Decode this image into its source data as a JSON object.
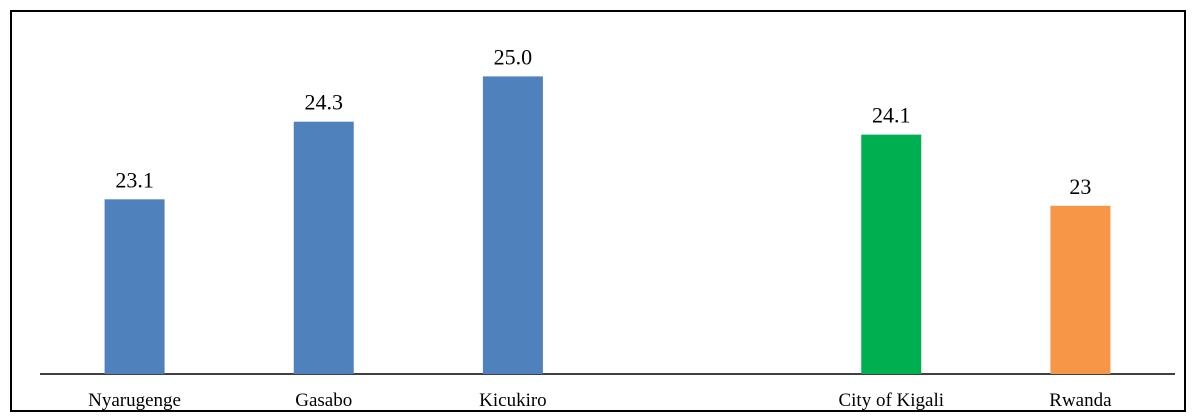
{
  "chart_data": {
    "type": "bar",
    "categories": [
      "Nyarugenge",
      "Gasabo",
      "Kicukiro",
      "",
      "City of Kigali",
      "Rwanda"
    ],
    "values": [
      23.1,
      24.3,
      25.0,
      null,
      24.1,
      23
    ],
    "value_labels": [
      "23.1",
      "24.3",
      "25.0",
      "",
      "24.1",
      "23"
    ],
    "colors": [
      "#4f81bd",
      "#4f81bd",
      "#4f81bd",
      "",
      "#00b050",
      "#f79646"
    ],
    "title": "",
    "xlabel": "",
    "ylabel": "",
    "ylim": [
      20.4,
      25.3
    ],
    "grid": false,
    "legend": "none"
  }
}
